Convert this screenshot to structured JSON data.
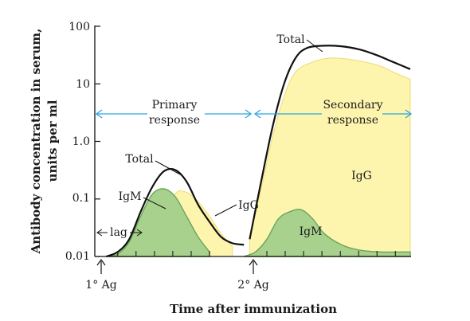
{
  "chart_data": {
    "type": "area",
    "ylabel_line1": "Antibody concentration in serum,",
    "ylabel_line2": "units per ml",
    "xlabel": "Time after immunization",
    "y_scale": "log",
    "y_ticks": [
      "100",
      "10",
      "1.0",
      "0.1",
      "0.01"
    ],
    "y_tick_values": [
      100,
      10,
      1,
      0.1,
      0.01
    ],
    "ylim": [
      0.01,
      100
    ],
    "grid": false,
    "colors": {
      "igm": "#a9d18e",
      "igm_stroke": "#6aa556",
      "igg": "#fdf5ae",
      "igg_stroke": "#eedc6e",
      "total": "#111111",
      "arrow": "#29a7df"
    },
    "events": [
      {
        "label": "1° Ag",
        "x": 0.5
      },
      {
        "label": "2° Ag",
        "x": 25.5
      }
    ],
    "phases": [
      {
        "line1": "Primary",
        "line2": "response",
        "from": -2,
        "to": 25.5
      },
      {
        "line1": "Secondary",
        "line2": "response",
        "from": 25.5,
        "to": 55
      }
    ],
    "annotations": {
      "lag": "lag",
      "total_primary": "Total",
      "total_secondary": "Total",
      "igm_primary": "IgM",
      "igg_primary": "IgG",
      "igm_secondary": "IgM",
      "igg_secondary": "IgG"
    },
    "series": [
      {
        "name": "IgM",
        "segments": [
          {
            "x": [
              2,
              4,
              6,
              8,
              10,
              12,
              14,
              16,
              18,
              20
            ],
            "y": [
              0.01,
              0.011,
              0.018,
              0.05,
              0.12,
              0.15,
              0.11,
              0.05,
              0.022,
              0.012
            ]
          },
          {
            "x": [
              26,
              28,
              30,
              32,
              34,
              36,
              38,
              40,
              43,
              46,
              50,
              55
            ],
            "y": [
              0.01,
              0.012,
              0.02,
              0.045,
              0.06,
              0.065,
              0.045,
              0.025,
              0.016,
              0.013,
              0.012,
              0.012
            ]
          }
        ]
      },
      {
        "name": "IgG",
        "segments": [
          {
            "x": [
              10,
              12,
              14,
              16,
              18,
              20,
              22,
              24
            ],
            "y": [
              0.015,
              0.03,
              0.12,
              0.13,
              0.09,
              0.05,
              0.025,
              0.015
            ]
          },
          {
            "x": [
              27,
              29,
              31,
              33,
              35,
              38,
              41,
              44,
              47,
              50,
              52,
              55
            ],
            "y": [
              0.02,
              0.15,
              1.2,
              6,
              16,
              24,
              28,
              27,
              24,
              20,
              16,
              12
            ]
          }
        ]
      },
      {
        "name": "Total",
        "segments": [
          {
            "x": [
              2,
              4,
              6,
              8,
              10,
              12,
              14,
              16,
              18,
              20,
              22,
              24,
              26
            ],
            "y": [
              0.01,
              0.012,
              0.02,
              0.06,
              0.16,
              0.3,
              0.32,
              0.2,
              0.08,
              0.04,
              0.022,
              0.017,
              0.016
            ]
          },
          {
            "x": [
              27,
              29,
              31,
              33,
              35,
              37,
              40,
              43,
              46,
              49,
              52,
              55
            ],
            "y": [
              0.02,
              0.2,
              1.8,
              10,
              28,
              42,
              46,
              45,
              40,
              32,
              24,
              18
            ]
          }
        ]
      }
    ]
  }
}
